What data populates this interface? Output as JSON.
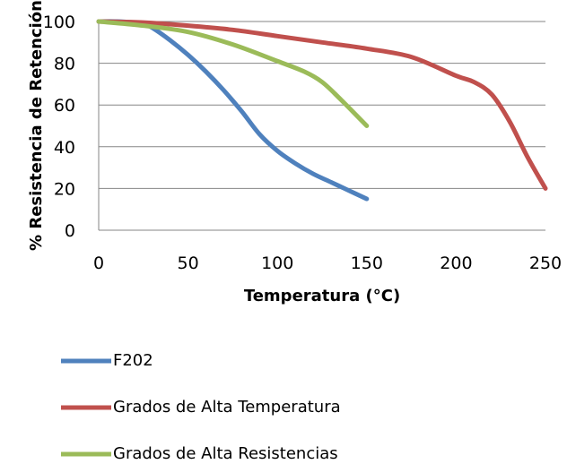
{
  "chart_data": {
    "type": "line",
    "xlabel": "Temperatura (°C)",
    "ylabel": "% Resistencia de Retención",
    "xlim": [
      0,
      250
    ],
    "ylim": [
      0,
      100
    ],
    "x_ticks": [
      "0",
      "50",
      "100",
      "150",
      "200",
      "250"
    ],
    "y_ticks": [
      "0",
      "20",
      "40",
      "60",
      "80",
      "100"
    ],
    "grid": "horizontal",
    "legend_position": "bottom",
    "series": [
      {
        "name": "F202",
        "color": "#4F81BD",
        "x": [
          0,
          10,
          20,
          25,
          30,
          40,
          50,
          60,
          70,
          80,
          90,
          100,
          110,
          120,
          130,
          140,
          150
        ],
        "y": [
          100,
          100,
          99.5,
          99,
          97,
          91,
          84,
          76,
          67,
          57,
          46,
          38,
          32,
          27,
          23,
          19,
          15
        ]
      },
      {
        "name": "Grados de Alta Temperatura",
        "color": "#C0504D",
        "x": [
          0,
          25,
          50,
          75,
          100,
          125,
          150,
          175,
          200,
          210,
          220,
          230,
          240,
          250
        ],
        "y": [
          100,
          99.5,
          98,
          96,
          93,
          90,
          87,
          83,
          74,
          71,
          65,
          52,
          35,
          20
        ]
      },
      {
        "name": "Grados de Alta Resistencias",
        "color": "#9BBB59",
        "x": [
          0,
          25,
          50,
          75,
          100,
          115,
          125,
          135,
          150
        ],
        "y": [
          100,
          98,
          95,
          89,
          81,
          76,
          71,
          63,
          50
        ]
      }
    ]
  }
}
